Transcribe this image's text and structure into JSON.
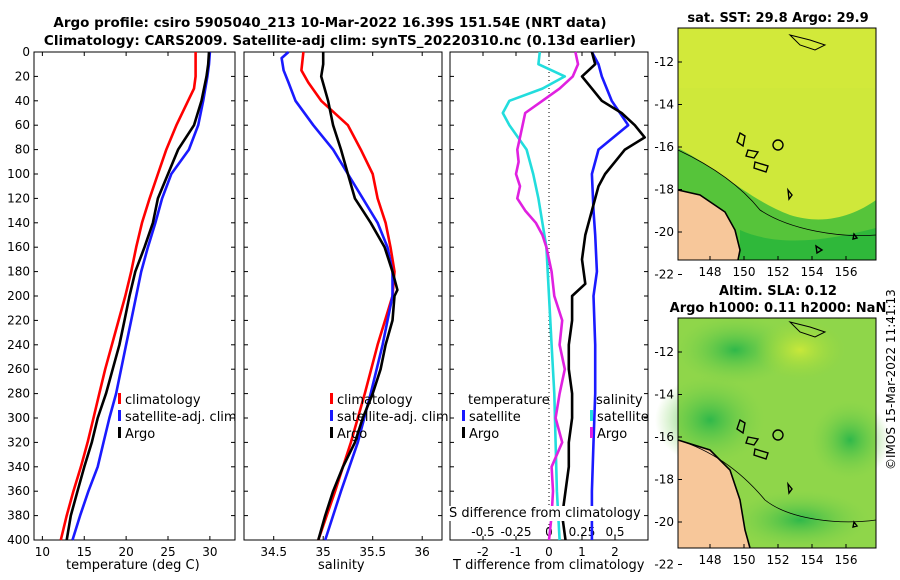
{
  "header": {
    "line1": "Argo profile: csiro 5905040_213 10-Mar-2022 16.39S 151.54E (NRT data)",
    "line2": "Climatology: CARS2009. Satellite-adj clim: synTS_20220310.nc (0.13d earlier)"
  },
  "colors": {
    "climatology": "#ff0000",
    "satellite": "#1a1aff",
    "argo": "#000000",
    "salinity_diff": "#e020e0",
    "temp_diff": "#22dddd",
    "land": "#f7c79a",
    "contour": "#000000"
  },
  "chart_data": [
    {
      "id": "temperature",
      "type": "line",
      "xlabel": "temperature (deg C)",
      "ylabel": "",
      "xlim": [
        9,
        33
      ],
      "ylim": [
        400,
        0
      ],
      "xticks": [
        10,
        15,
        20,
        25,
        30
      ],
      "yticks": [
        0,
        20,
        40,
        60,
        80,
        100,
        120,
        140,
        160,
        180,
        200,
        220,
        240,
        260,
        280,
        300,
        320,
        340,
        360,
        380,
        400
      ],
      "legend": [
        "climatology",
        "satellite-adj. clim",
        "Argo"
      ],
      "series": [
        {
          "name": "climatology",
          "color": "#ff0000",
          "depth": [
            0,
            10,
            20,
            30,
            40,
            60,
            80,
            100,
            120,
            140,
            160,
            180,
            200,
            220,
            240,
            260,
            280,
            300,
            320,
            340,
            360,
            380,
            400
          ],
          "values": [
            28.3,
            28.3,
            28.3,
            28.1,
            27.4,
            26.0,
            24.8,
            23.8,
            22.8,
            21.9,
            21.2,
            20.6,
            19.9,
            19.1,
            18.3,
            17.5,
            16.8,
            16.1,
            15.4,
            14.6,
            13.7,
            12.9,
            12.2
          ]
        },
        {
          "name": "satellite-adj. clim",
          "color": "#1a1aff",
          "depth": [
            0,
            10,
            20,
            40,
            60,
            80,
            100,
            120,
            140,
            160,
            180,
            200,
            220,
            240,
            260,
            280,
            300,
            320,
            340,
            360,
            380,
            400
          ],
          "values": [
            30.0,
            29.9,
            29.7,
            29.2,
            28.6,
            27.5,
            25.4,
            24.3,
            23.5,
            22.6,
            21.8,
            21.2,
            20.6,
            20.0,
            19.4,
            18.8,
            18.0,
            17.3,
            16.6,
            15.5,
            14.5,
            13.6
          ]
        },
        {
          "name": "Argo",
          "color": "#000000",
          "depth": [
            0,
            10,
            20,
            40,
            60,
            80,
            100,
            120,
            140,
            160,
            180,
            200,
            220,
            240,
            260,
            280,
            300,
            320,
            340,
            360,
            380,
            400
          ],
          "values": [
            29.9,
            29.8,
            29.6,
            29.0,
            28.1,
            26.2,
            25.0,
            23.8,
            23.2,
            22.2,
            21.1,
            20.4,
            19.8,
            19.2,
            18.4,
            17.6,
            16.6,
            15.9,
            15.0,
            14.2,
            13.4,
            12.9
          ]
        }
      ]
    },
    {
      "id": "salinity",
      "type": "line",
      "xlabel": "salinity",
      "ylabel": "",
      "xlim": [
        34.2,
        36.2
      ],
      "ylim": [
        400,
        0
      ],
      "xticks": [
        34.5,
        35,
        35.5,
        36
      ],
      "xticklabels": [
        "34.5",
        "35",
        "35.5",
        "36"
      ],
      "legend": [
        "climatology",
        "satellite-adj. clim",
        "Argo"
      ],
      "series": [
        {
          "name": "climatology",
          "color": "#ff0000",
          "depth": [
            0,
            15,
            25,
            40,
            60,
            80,
            100,
            120,
            140,
            160,
            180,
            200,
            240,
            280,
            320,
            360,
            400
          ],
          "values": [
            34.8,
            34.78,
            34.85,
            34.98,
            35.25,
            35.38,
            35.5,
            35.55,
            35.63,
            35.68,
            35.72,
            35.7,
            35.55,
            35.42,
            35.28,
            35.12,
            34.95
          ]
        },
        {
          "name": "satellite-adj. clim",
          "color": "#1a1aff",
          "depth": [
            0,
            5,
            15,
            25,
            40,
            60,
            80,
            100,
            120,
            140,
            160,
            180,
            200,
            240,
            280,
            320,
            360,
            400
          ],
          "values": [
            34.65,
            34.58,
            34.6,
            34.65,
            34.72,
            34.9,
            35.1,
            35.25,
            35.4,
            35.55,
            35.65,
            35.7,
            35.7,
            35.6,
            35.48,
            35.35,
            35.18,
            35.02
          ]
        },
        {
          "name": "Argo",
          "color": "#000000",
          "depth": [
            0,
            10,
            20,
            40,
            60,
            80,
            100,
            120,
            130,
            140,
            160,
            180,
            195,
            200,
            220,
            240,
            260,
            280,
            300,
            320,
            340,
            360,
            380,
            400
          ],
          "values": [
            35.0,
            35.0,
            34.98,
            35.05,
            35.1,
            35.18,
            35.25,
            35.32,
            35.4,
            35.48,
            35.62,
            35.7,
            35.75,
            35.72,
            35.7,
            35.63,
            35.58,
            35.5,
            35.4,
            35.32,
            35.2,
            35.1,
            35.02,
            34.95
          ]
        }
      ]
    },
    {
      "id": "differences",
      "type": "line",
      "xlabel": "T difference from climatology",
      "xlabel_top": "S difference from climatology",
      "xlim": [
        -3.0,
        3.0
      ],
      "ylim": [
        400,
        0
      ],
      "xticks": [
        -2,
        -1,
        0,
        1,
        2
      ],
      "s_xticks": [
        -0.5,
        -0.25,
        0,
        0.25,
        0.5
      ],
      "s_xticklabels": [
        "-0.5",
        "-0.25",
        "0",
        "0.25",
        "0.5"
      ],
      "legend_left": {
        "title": "temperature",
        "items": [
          "satellite",
          "Argo"
        ]
      },
      "legend_right": {
        "title": "salinity",
        "items": [
          "satellite",
          "Argo"
        ]
      },
      "series": [
        {
          "name": "T satellite",
          "color": "#1a1aff",
          "depth": [
            0,
            10,
            20,
            40,
            60,
            80,
            100,
            130,
            150,
            180,
            200,
            240,
            280,
            320,
            360,
            400
          ],
          "values": [
            1.3,
            1.5,
            1.6,
            1.9,
            2.4,
            1.5,
            1.3,
            1.35,
            1.4,
            1.45,
            1.35,
            1.4,
            1.4,
            1.35,
            1.3,
            1.3
          ]
        },
        {
          "name": "T Argo",
          "color": "#000000",
          "depth": [
            0,
            10,
            15,
            20,
            30,
            40,
            50,
            60,
            70,
            80,
            90,
            100,
            110,
            130,
            150,
            170,
            190,
            200,
            220,
            240,
            260,
            280,
            300,
            320,
            340,
            360,
            380,
            400
          ],
          "values": [
            1.3,
            1.4,
            1.2,
            1.0,
            1.3,
            1.6,
            2.2,
            2.6,
            2.9,
            2.3,
            2.0,
            1.7,
            1.5,
            1.3,
            1.1,
            1.0,
            1.1,
            0.7,
            0.7,
            0.6,
            0.6,
            0.7,
            0.7,
            0.6,
            0.6,
            0.5,
            0.4,
            0.5
          ]
        },
        {
          "name": "S satellite",
          "color": "#22dddd",
          "depth": [
            0,
            10,
            20,
            30,
            40,
            50,
            60,
            80,
            100,
            120,
            140,
            160,
            200,
            240,
            280,
            320,
            360,
            400
          ],
          "values": [
            -0.07,
            -0.08,
            0.12,
            -0.05,
            -0.3,
            -0.35,
            -0.3,
            -0.17,
            -0.12,
            -0.08,
            -0.05,
            -0.02,
            0.0,
            0.02,
            0.04,
            0.05,
            0.06,
            0.08
          ]
        },
        {
          "name": "S Argo",
          "color": "#e020e0",
          "depth": [
            0,
            10,
            20,
            30,
            40,
            50,
            60,
            70,
            80,
            90,
            100,
            110,
            120,
            130,
            140,
            150,
            160,
            180,
            200,
            220,
            240,
            260,
            280,
            300,
            320,
            340,
            360,
            380,
            400
          ],
          "values": [
            0.2,
            0.22,
            0.18,
            0.08,
            -0.05,
            -0.18,
            -0.2,
            -0.22,
            -0.24,
            -0.23,
            -0.25,
            -0.22,
            -0.24,
            -0.18,
            -0.1,
            -0.05,
            -0.02,
            0.02,
            0.04,
            0.1,
            0.08,
            0.12,
            0.08,
            0.05,
            0.1,
            0.02,
            0.03,
            0.02,
            0.0
          ]
        }
      ]
    }
  ],
  "sst_map": {
    "title": "sat. SST: 29.8 Argo: 29.9",
    "lon_ticks": [
      "148",
      "150",
      "152",
      "154",
      "156"
    ],
    "lat_ticks": [
      "-12",
      "-14",
      "-16",
      "-18",
      "-20",
      "-22"
    ]
  },
  "sla_map": {
    "title_line1": "Altim. SLA: 0.12",
    "title_line2": "Argo h1000: 0.11 h2000: NaN",
    "lon_ticks": [
      "148",
      "150",
      "152",
      "154",
      "156"
    ],
    "lat_ticks": [
      "-12",
      "-14",
      "-16",
      "-18",
      "-20",
      "-22"
    ]
  },
  "stamp": "©IMOS 15-Mar-2022 11:41:13"
}
